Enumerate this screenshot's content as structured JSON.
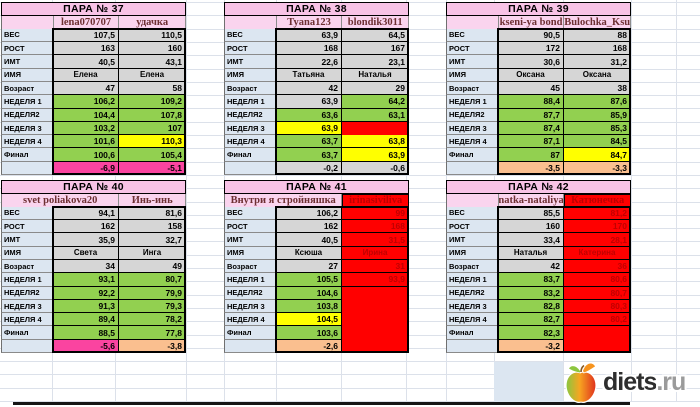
{
  "palette": {
    "green": "#92D050",
    "yellow": "#FFFF00",
    "red": "#FF0000",
    "magenta": "#FA44A0",
    "orange": "#FABF8F",
    "gray": "#D6D6D6",
    "label_blue": "#DCE6F1",
    "header_pink": "#F8C3E6",
    "user_pink": "#FAD4EE",
    "username_text": "#6D2F32",
    "red_cell_text": "#C00000",
    "logo_brand_color": "#2E2E2E",
    "logo_tld_color": "#9B9B9B"
  },
  "row_labels": [
    "ВЕС",
    "РОСТ",
    "ИМТ",
    "ИМЯ",
    "Возраст",
    "НЕДЕЛЯ 1",
    "НЕДЕЛЯ2",
    "НЕДЕЛЯ 3",
    "НЕДЕЛЯ 4",
    "Финал",
    ""
  ],
  "tables": [
    {
      "title": "ПАРА № 37",
      "users": [
        {
          "name": "lena070707",
          "red": false,
          "wide": false
        },
        {
          "name": "удачка",
          "red": false
        }
      ],
      "rows": [
        {
          "v": [
            "107,5",
            "110,5"
          ],
          "c": [
            "gray",
            "gray"
          ]
        },
        {
          "v": [
            "163",
            "160"
          ],
          "c": [
            "gray",
            "gray"
          ]
        },
        {
          "v": [
            "40,5",
            "43,1"
          ],
          "c": [
            "gray",
            "gray"
          ]
        },
        {
          "v": [
            "Елена",
            "Елена"
          ],
          "c": [
            "gray",
            "gray"
          ]
        },
        {
          "v": [
            "47",
            "58"
          ],
          "c": [
            "gray",
            "gray"
          ]
        },
        {
          "v": [
            "106,2",
            "109,2"
          ],
          "c": [
            "green",
            "green"
          ]
        },
        {
          "v": [
            "104,4",
            "107,8"
          ],
          "c": [
            "green",
            "green"
          ]
        },
        {
          "v": [
            "103,2",
            "107"
          ],
          "c": [
            "green",
            "green"
          ]
        },
        {
          "v": [
            "101,6",
            "110,3"
          ],
          "c": [
            "green",
            "yellow"
          ]
        },
        {
          "v": [
            "100,6",
            "105,4"
          ],
          "c": [
            "green",
            "green"
          ]
        },
        {
          "v": [
            "-6,9",
            "-5,1"
          ],
          "c": [
            "magenta",
            "magenta"
          ]
        }
      ]
    },
    {
      "title": "ПАРА № 38",
      "users": [
        {
          "name": "Tyana123",
          "red": false,
          "wide": false
        },
        {
          "name": "blondik3011",
          "red": false
        }
      ],
      "rows": [
        {
          "v": [
            "63,9",
            "64,5"
          ],
          "c": [
            "gray",
            "gray"
          ]
        },
        {
          "v": [
            "168",
            "167"
          ],
          "c": [
            "gray",
            "gray"
          ]
        },
        {
          "v": [
            "22,6",
            "23,1"
          ],
          "c": [
            "gray",
            "gray"
          ]
        },
        {
          "v": [
            "Татьяна",
            "Наталья"
          ],
          "c": [
            "gray",
            "gray"
          ]
        },
        {
          "v": [
            "42",
            "29"
          ],
          "c": [
            "gray",
            "gray"
          ]
        },
        {
          "v": [
            "63,9",
            "64,2"
          ],
          "c": [
            "gray",
            "green"
          ]
        },
        {
          "v": [
            "63,6",
            "63,1"
          ],
          "c": [
            "green",
            "green"
          ]
        },
        {
          "v": [
            "63,9",
            ""
          ],
          "c": [
            "yellow",
            "red"
          ]
        },
        {
          "v": [
            "63,7",
            "63,8"
          ],
          "c": [
            "green",
            "yellow"
          ]
        },
        {
          "v": [
            "63,7",
            "63,9"
          ],
          "c": [
            "green",
            "yellow"
          ]
        },
        {
          "v": [
            "-0,2",
            "-0,6"
          ],
          "c": [
            "gray",
            "gray"
          ]
        }
      ]
    },
    {
      "title": "ПАРА № 39",
      "users": [
        {
          "name": "kseni-ya bond",
          "red": false,
          "wide": false
        },
        {
          "name": "Bulochka_Ksu",
          "red": false
        }
      ],
      "rows": [
        {
          "v": [
            "90,5",
            "88"
          ],
          "c": [
            "gray",
            "gray"
          ]
        },
        {
          "v": [
            "172",
            "168"
          ],
          "c": [
            "gray",
            "gray"
          ]
        },
        {
          "v": [
            "30,6",
            "31,2"
          ],
          "c": [
            "gray",
            "gray"
          ]
        },
        {
          "v": [
            "Оксана",
            "Оксана"
          ],
          "c": [
            "gray",
            "gray"
          ]
        },
        {
          "v": [
            "45",
            "38"
          ],
          "c": [
            "gray",
            "gray"
          ]
        },
        {
          "v": [
            "88,4",
            "87,6"
          ],
          "c": [
            "green",
            "green"
          ]
        },
        {
          "v": [
            "87,7",
            "85,9"
          ],
          "c": [
            "green",
            "green"
          ]
        },
        {
          "v": [
            "87,4",
            "85,3"
          ],
          "c": [
            "green",
            "green"
          ]
        },
        {
          "v": [
            "87,1",
            "84,5"
          ],
          "c": [
            "green",
            "green"
          ]
        },
        {
          "v": [
            "87",
            "84,7"
          ],
          "c": [
            "green",
            "yellow"
          ]
        },
        {
          "v": [
            "-3,5",
            "-3,3"
          ],
          "c": [
            "orange",
            "orange"
          ]
        }
      ]
    },
    {
      "title": "ПАРА № 40",
      "users": [
        {
          "name": "svet  poliakova20",
          "red": false,
          "wide": true
        },
        {
          "name": "Инь-инь",
          "red": false
        }
      ],
      "rows": [
        {
          "v": [
            "94,1",
            "81,6"
          ],
          "c": [
            "gray",
            "gray"
          ]
        },
        {
          "v": [
            "162",
            "158"
          ],
          "c": [
            "gray",
            "gray"
          ]
        },
        {
          "v": [
            "35,9",
            "32,7"
          ],
          "c": [
            "gray",
            "gray"
          ]
        },
        {
          "v": [
            "Света",
            "Инга"
          ],
          "c": [
            "gray",
            "gray"
          ]
        },
        {
          "v": [
            "34",
            "49"
          ],
          "c": [
            "gray",
            "gray"
          ]
        },
        {
          "v": [
            "93,1",
            "80,7"
          ],
          "c": [
            "green",
            "green"
          ]
        },
        {
          "v": [
            "92,2",
            "79,9"
          ],
          "c": [
            "green",
            "green"
          ]
        },
        {
          "v": [
            "91,3",
            "79,3"
          ],
          "c": [
            "green",
            "green"
          ]
        },
        {
          "v": [
            "89,4",
            "78,2"
          ],
          "c": [
            "green",
            "green"
          ]
        },
        {
          "v": [
            "88,5",
            "77,8"
          ],
          "c": [
            "green",
            "green"
          ]
        },
        {
          "v": [
            "-5,6",
            "-3,8"
          ],
          "c": [
            "magenta",
            "orange"
          ]
        }
      ]
    },
    {
      "title": "ПАРА № 41",
      "users": [
        {
          "name": "Внутри я  стройняшка",
          "red": false,
          "wide": true
        },
        {
          "name": "irinasiviliva",
          "red": true
        }
      ],
      "rows": [
        {
          "v": [
            "106,2",
            "99"
          ],
          "c": [
            "gray",
            "red"
          ]
        },
        {
          "v": [
            "162",
            "168"
          ],
          "c": [
            "gray",
            "red"
          ]
        },
        {
          "v": [
            "40,5",
            "31,5"
          ],
          "c": [
            "gray",
            "red"
          ]
        },
        {
          "v": [
            "Ксюша",
            "Ирина"
          ],
          "c": [
            "gray",
            "red"
          ]
        },
        {
          "v": [
            "27",
            "31"
          ],
          "c": [
            "gray",
            "red"
          ]
        },
        {
          "v": [
            "105,5",
            "93,9"
          ],
          "c": [
            "green",
            "red"
          ]
        },
        {
          "v": [
            "104,6",
            ""
          ],
          "c": [
            "green",
            "red"
          ]
        },
        {
          "v": [
            "103,8",
            ""
          ],
          "c": [
            "green",
            "red"
          ]
        },
        {
          "v": [
            "104,5",
            ""
          ],
          "c": [
            "yellow",
            "red"
          ]
        },
        {
          "v": [
            "103,6",
            ""
          ],
          "c": [
            "green",
            "red"
          ]
        },
        {
          "v": [
            "-2,6",
            ""
          ],
          "c": [
            "orange",
            "red"
          ]
        }
      ]
    },
    {
      "title": "ПАРА № 42",
      "users": [
        {
          "name": "natka-nataliya",
          "red": false,
          "wide": false
        },
        {
          "name": "Катюнечка",
          "red": true
        }
      ],
      "rows": [
        {
          "v": [
            "85,5",
            "81,2"
          ],
          "c": [
            "gray",
            "red"
          ]
        },
        {
          "v": [
            "160",
            "170"
          ],
          "c": [
            "gray",
            "red"
          ]
        },
        {
          "v": [
            "33,4",
            "28,1"
          ],
          "c": [
            "gray",
            "red"
          ]
        },
        {
          "v": [
            "Наталья",
            "Катерина"
          ],
          "c": [
            "gray",
            "red"
          ]
        },
        {
          "v": [
            "42",
            "36"
          ],
          "c": [
            "gray",
            "red"
          ]
        },
        {
          "v": [
            "83,7",
            "80,6"
          ],
          "c": [
            "green",
            "red"
          ]
        },
        {
          "v": [
            "83,2",
            "80,7"
          ],
          "c": [
            "green",
            "red"
          ]
        },
        {
          "v": [
            "82,8",
            "80,3"
          ],
          "c": [
            "green",
            "red"
          ]
        },
        {
          "v": [
            "82,7",
            "80,2"
          ],
          "c": [
            "green",
            "red"
          ]
        },
        {
          "v": [
            "82,3",
            ""
          ],
          "c": [
            "green",
            "red"
          ]
        },
        {
          "v": [
            "-3,2",
            ""
          ],
          "c": [
            "orange",
            "red"
          ]
        }
      ]
    }
  ],
  "logo": {
    "brand": "diets",
    "tld": ".ru"
  }
}
